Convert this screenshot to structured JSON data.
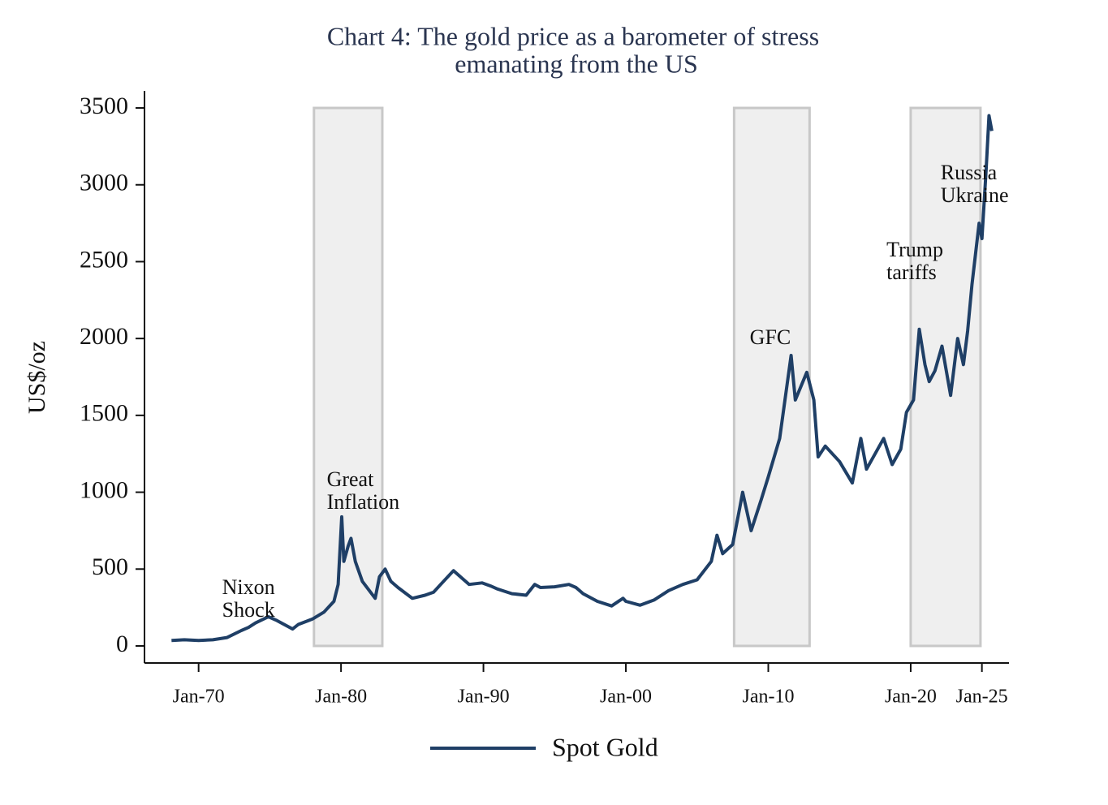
{
  "chart_data": {
    "type": "line",
    "title": [
      "Chart 4: The gold price as a barometer of stress",
      "emanating from the US"
    ],
    "y_label": "US$/oz",
    "xlim": [
      1966.2,
      2026.9
    ],
    "ylim": [
      -111,
      3611
    ],
    "xticks": [
      {
        "value": 1970,
        "label": "Jan-70"
      },
      {
        "value": 1980,
        "label": "Jan-80"
      },
      {
        "value": 1990,
        "label": "Jan-90"
      },
      {
        "value": 2000,
        "label": "Jan-00"
      },
      {
        "value": 2010,
        "label": "Jan-10"
      },
      {
        "value": 2020,
        "label": "Jan-20"
      },
      {
        "value": 2025,
        "label": "Jan-25"
      }
    ],
    "yticks": [
      0,
      500,
      1000,
      1500,
      2000,
      2500,
      3000,
      3500
    ],
    "shaded_periods": [
      [
        1978.1,
        1982.9
      ],
      [
        2007.6,
        2012.9
      ],
      [
        2020.0,
        2024.9
      ]
    ],
    "annotations": [
      {
        "lines": [
          "Nixon",
          "Shock"
        ],
        "x": 1971.65,
        "y": 370
      },
      {
        "lines": [
          "Great",
          "Inflation"
        ],
        "x": 1979.0,
        "y": 1072
      },
      {
        "lines": [
          "GFC"
        ],
        "x": 2008.7,
        "y": 1996
      },
      {
        "lines": [
          "Trump",
          "tariffs"
        ],
        "x": 2018.3,
        "y": 2566
      },
      {
        "lines": [
          "Russia",
          "Ukraine"
        ],
        "x": 2022.1,
        "y": 3068
      }
    ],
    "legend": "bottom",
    "x": [
      1968.1,
      1969,
      1970,
      1971,
      1972,
      1973,
      1973.5,
      1974,
      1974.9,
      1975.5,
      1976.6,
      1977,
      1978,
      1978.8,
      1979.5,
      1979.8,
      1980.05,
      1980.2,
      1980.5,
      1980.7,
      1981,
      1981.5,
      1982.4,
      1982.7,
      1983.1,
      1983.5,
      1984,
      1985,
      1985.9,
      1986.5,
      1987,
      1987.9,
      1988.5,
      1989,
      1989.9,
      1990.5,
      1991,
      1992,
      1993,
      1993.6,
      1994,
      1995,
      1996,
      1996.5,
      1997,
      1998,
      1999,
      1999.8,
      2000,
      2001,
      2002,
      2003,
      2004,
      2005,
      2006,
      2006.4,
      2006.8,
      2007.5,
      2008.0,
      2008.2,
      2008.8,
      2009.5,
      2010,
      2010.8,
      2011.6,
      2011.9,
      2012.7,
      2013.2,
      2013.5,
      2014,
      2014.5,
      2015,
      2015.9,
      2016.5,
      2016.9,
      2017.5,
      2018.1,
      2018.7,
      2019.3,
      2019.7,
      2020.2,
      2020.6,
      2021,
      2021.3,
      2021.7,
      2022.2,
      2022.8,
      2023.3,
      2023.7,
      2024.0,
      2024.3,
      2024.8,
      2025.0,
      2025.3,
      2025.5,
      2025.7
    ],
    "series": [
      {
        "name": "Spot Gold",
        "color": "#1f3f66",
        "values": [
          35,
          40,
          36,
          40,
          55,
          100,
          120,
          150,
          190,
          165,
          110,
          140,
          175,
          220,
          290,
          400,
          840,
          550,
          650,
          700,
          550,
          420,
          310,
          450,
          500,
          420,
          380,
          310,
          330,
          350,
          400,
          490,
          440,
          400,
          410,
          390,
          370,
          340,
          330,
          400,
          380,
          385,
          400,
          380,
          340,
          290,
          260,
          310,
          290,
          265,
          300,
          360,
          400,
          430,
          550,
          720,
          600,
          660,
          900,
          1000,
          750,
          950,
          1100,
          1350,
          1890,
          1600,
          1780,
          1600,
          1230,
          1300,
          1250,
          1200,
          1060,
          1350,
          1150,
          1250,
          1350,
          1180,
          1280,
          1520,
          1600,
          2060,
          1830,
          1720,
          1790,
          1950,
          1630,
          2000,
          1830,
          2050,
          2350,
          2750,
          2650,
          3100,
          3450,
          3350
        ]
      }
    ]
  }
}
